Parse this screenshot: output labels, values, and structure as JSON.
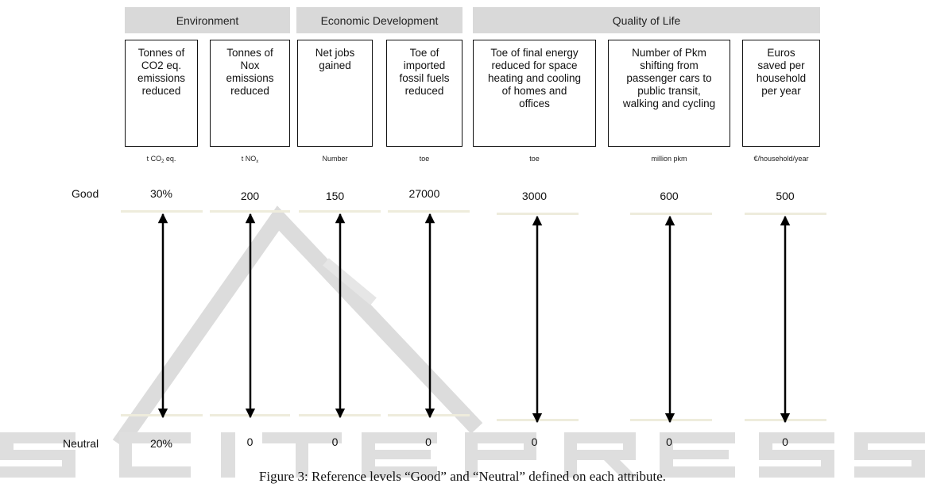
{
  "categories": [
    {
      "label": "Environment"
    },
    {
      "label": "Economic Development"
    },
    {
      "label": "Quality of Life"
    }
  ],
  "attributes": [
    {
      "label": "Tonnes of\nCO2 eq.\nemissions\nreduced",
      "unit": "t CO2 eq.",
      "good": "30%",
      "neutral": "20%"
    },
    {
      "label": "Tonnes of\nNox\nemissions\nreduced",
      "unit": "t NOx",
      "good": "200",
      "neutral": "0"
    },
    {
      "label": "Net jobs\ngained",
      "unit": "Number",
      "good": "150",
      "neutral": "0"
    },
    {
      "label": "Toe of\nimported\nfossil fuels\nreduced",
      "unit": "toe",
      "good": "27000",
      "neutral": "0"
    },
    {
      "label": "Toe of final energy\nreduced for space\nheating and cooling\nof homes and\noffices",
      "unit": "toe",
      "good": "3000",
      "neutral": "0"
    },
    {
      "label": "Number of Pkm\nshifting from\npassenger cars to\npublic transit,\nwalking and cycling",
      "unit": "million pkm",
      "good": "600",
      "neutral": "0"
    },
    {
      "label": "Euros\nsaved per\nhousehold\nper year",
      "unit": "€/household/year",
      "good": "500",
      "neutral": "0"
    }
  ],
  "rows": {
    "good": "Good",
    "neutral": "Neutral"
  },
  "watermark": "SCITEPRESS",
  "caption": "Figure 3: Reference levels “Good” and “Neutral” defined on each attribute.",
  "colors": {
    "header_bg": "#d9d9d9",
    "level_line": "#eeecdc",
    "watermark": "#e2e2e2"
  }
}
